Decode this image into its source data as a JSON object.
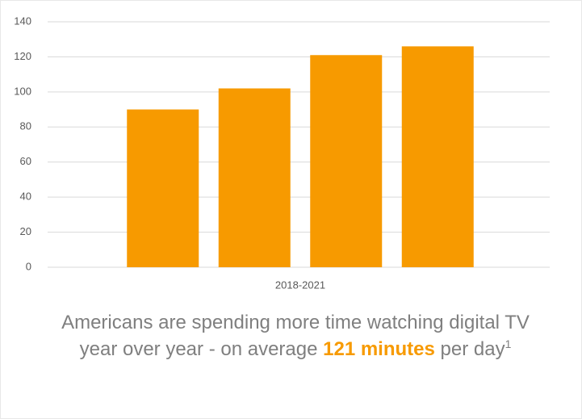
{
  "chart_data": {
    "type": "bar",
    "categories": [
      "2018-2021"
    ],
    "series": [
      {
        "color": "#f79a00",
        "values": [
          90
        ]
      },
      {
        "color": "#f79a00",
        "values": [
          102
        ]
      },
      {
        "color": "#f79a00",
        "values": [
          121
        ]
      },
      {
        "color": "#f79a00",
        "values": [
          126
        ]
      }
    ],
    "ylim": [
      0,
      140
    ],
    "yticks": [
      0,
      20,
      40,
      60,
      80,
      100,
      120,
      140
    ],
    "grid": true
  },
  "caption": {
    "text_before": "Americans are spending more time watching digital TV year over year - on average ",
    "highlight": "121 minutes",
    "text_after": " per day",
    "footnote": "1"
  }
}
